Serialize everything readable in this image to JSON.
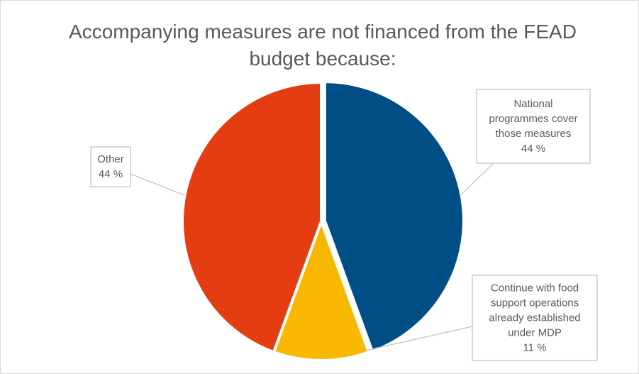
{
  "chart_data": {
    "type": "pie",
    "title_line1": "Accompanying measures are not financed from the FEAD",
    "title_line2": "budget because:",
    "slices": [
      {
        "label_lines": [
          "National",
          "programmes cover",
          "those measures"
        ],
        "percent_label": "44 %",
        "value": 44,
        "color": "#004e86",
        "exploded": true
      },
      {
        "label_lines": [
          "Continue with food",
          "support operations",
          "already established",
          "under MDP"
        ],
        "percent_label": "11 %",
        "value": 11,
        "color": "#f9b800",
        "exploded": false
      },
      {
        "label_lines": [
          "Other"
        ],
        "percent_label": "44 %",
        "value": 44,
        "color": "#e53d12",
        "exploded": false
      }
    ]
  }
}
